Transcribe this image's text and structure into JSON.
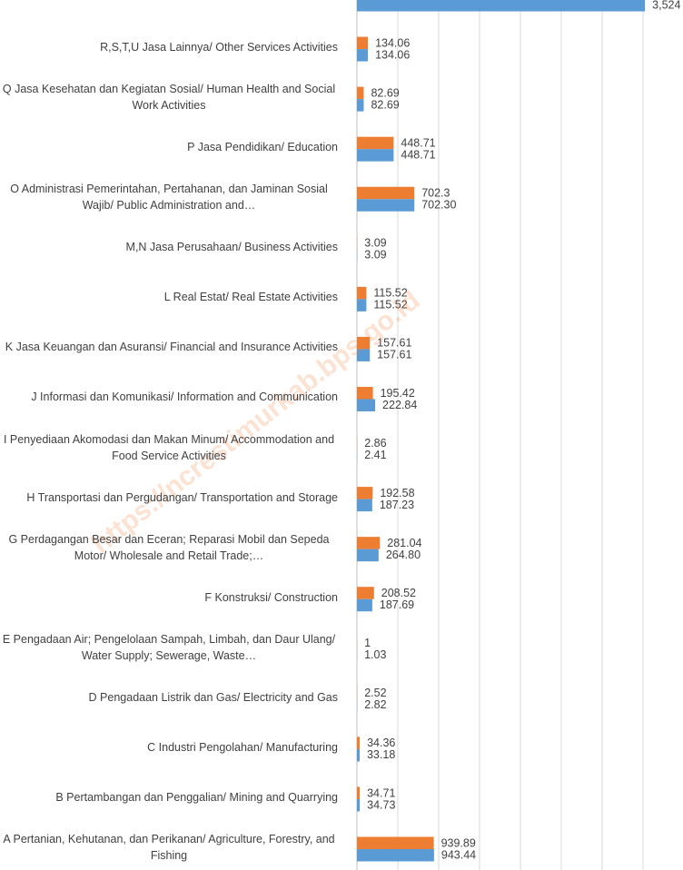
{
  "chart_data": {
    "type": "barh",
    "categories": [
      null,
      "R,S,T,U  Jasa Lainnya/ Other Services Activities",
      "Q  Jasa Kesehatan dan Kegiatan Sosial/ Human Health and Social Work Activities",
      "P  Jasa Pendidikan/ Education",
      "O  Administrasi Pemerintahan, Pertahanan, dan Jaminan Sosial Wajib/ Public Administration and…",
      "M,N  Jasa Perusahaan/ Business Activities",
      "L  Real Estat/ Real Estate Activities",
      "K  Jasa Keuangan dan Asuransi/ Financial and Insurance Activities",
      "J  Informasi dan Komunikasi/ Information and Communication",
      "I  Penyediaan Akomodasi dan Makan Minum/ Accommodation and Food Service Activities",
      "H  Transportasi dan Pergudangan/ Transportation and Storage",
      "G  Perdagangan Besar dan Eceran; Reparasi Mobil dan Sepeda Motor/ Wholesale and Retail Trade;…",
      "F  Konstruksi/ Construction",
      "E  Pengadaan Air; Pengelolaan Sampah, Limbah, dan Daur Ulang/ Water Supply; Sewerage, Waste…",
      "D  Pengadaan Listrik dan Gas/ Electricity and Gas",
      "C  Industri Pengolahan/ Manufacturing",
      "B  Pertambangan dan Penggalian/ Mining and Quarrying",
      "A  Pertanian, Kehutanan, dan Perikanan/ Agriculture, Forestry, and Fishing"
    ],
    "series": [
      {
        "color": "#ed7d31",
        "values": [
          null,
          134.06,
          82.69,
          448.71,
          702.3,
          3.09,
          115.52,
          157.61,
          195.42,
          2.86,
          192.58,
          281.04,
          208.52,
          1,
          2.52,
          34.36,
          34.71,
          939.89
        ],
        "value_labels": [
          null,
          "134.06",
          "82.69",
          "448.71",
          "702.3",
          "3.09",
          "115.52",
          "157.61",
          "195.42",
          "2.86",
          "192.58",
          "281.04",
          "208.52",
          "1",
          "2.52",
          "34.36",
          "34.71",
          "939.89"
        ]
      },
      {
        "color": "#5b9bd5",
        "values": [
          3524,
          134.06,
          82.69,
          448.71,
          702.3,
          3.09,
          115.52,
          157.61,
          222.84,
          2.41,
          187.23,
          264.8,
          187.69,
          1.03,
          2.82,
          33.18,
          34.73,
          943.44
        ],
        "value_labels": [
          "3,524",
          "134.06",
          "82.69",
          "448.71",
          "702.30",
          "3.09",
          "115.52",
          "157.61",
          "222.84",
          "2.41",
          "187.23",
          "264.80",
          "187.69",
          "1.03",
          "2.82",
          "33.18",
          "34.73",
          "943.44"
        ]
      }
    ],
    "xlim": [
      0,
      4000
    ],
    "xticks": [
      0,
      500,
      1000,
      1500,
      2000,
      2500,
      3000,
      3500,
      4000
    ],
    "grid": true,
    "watermark": "https://ncrestimurkab.bps.go.id"
  }
}
